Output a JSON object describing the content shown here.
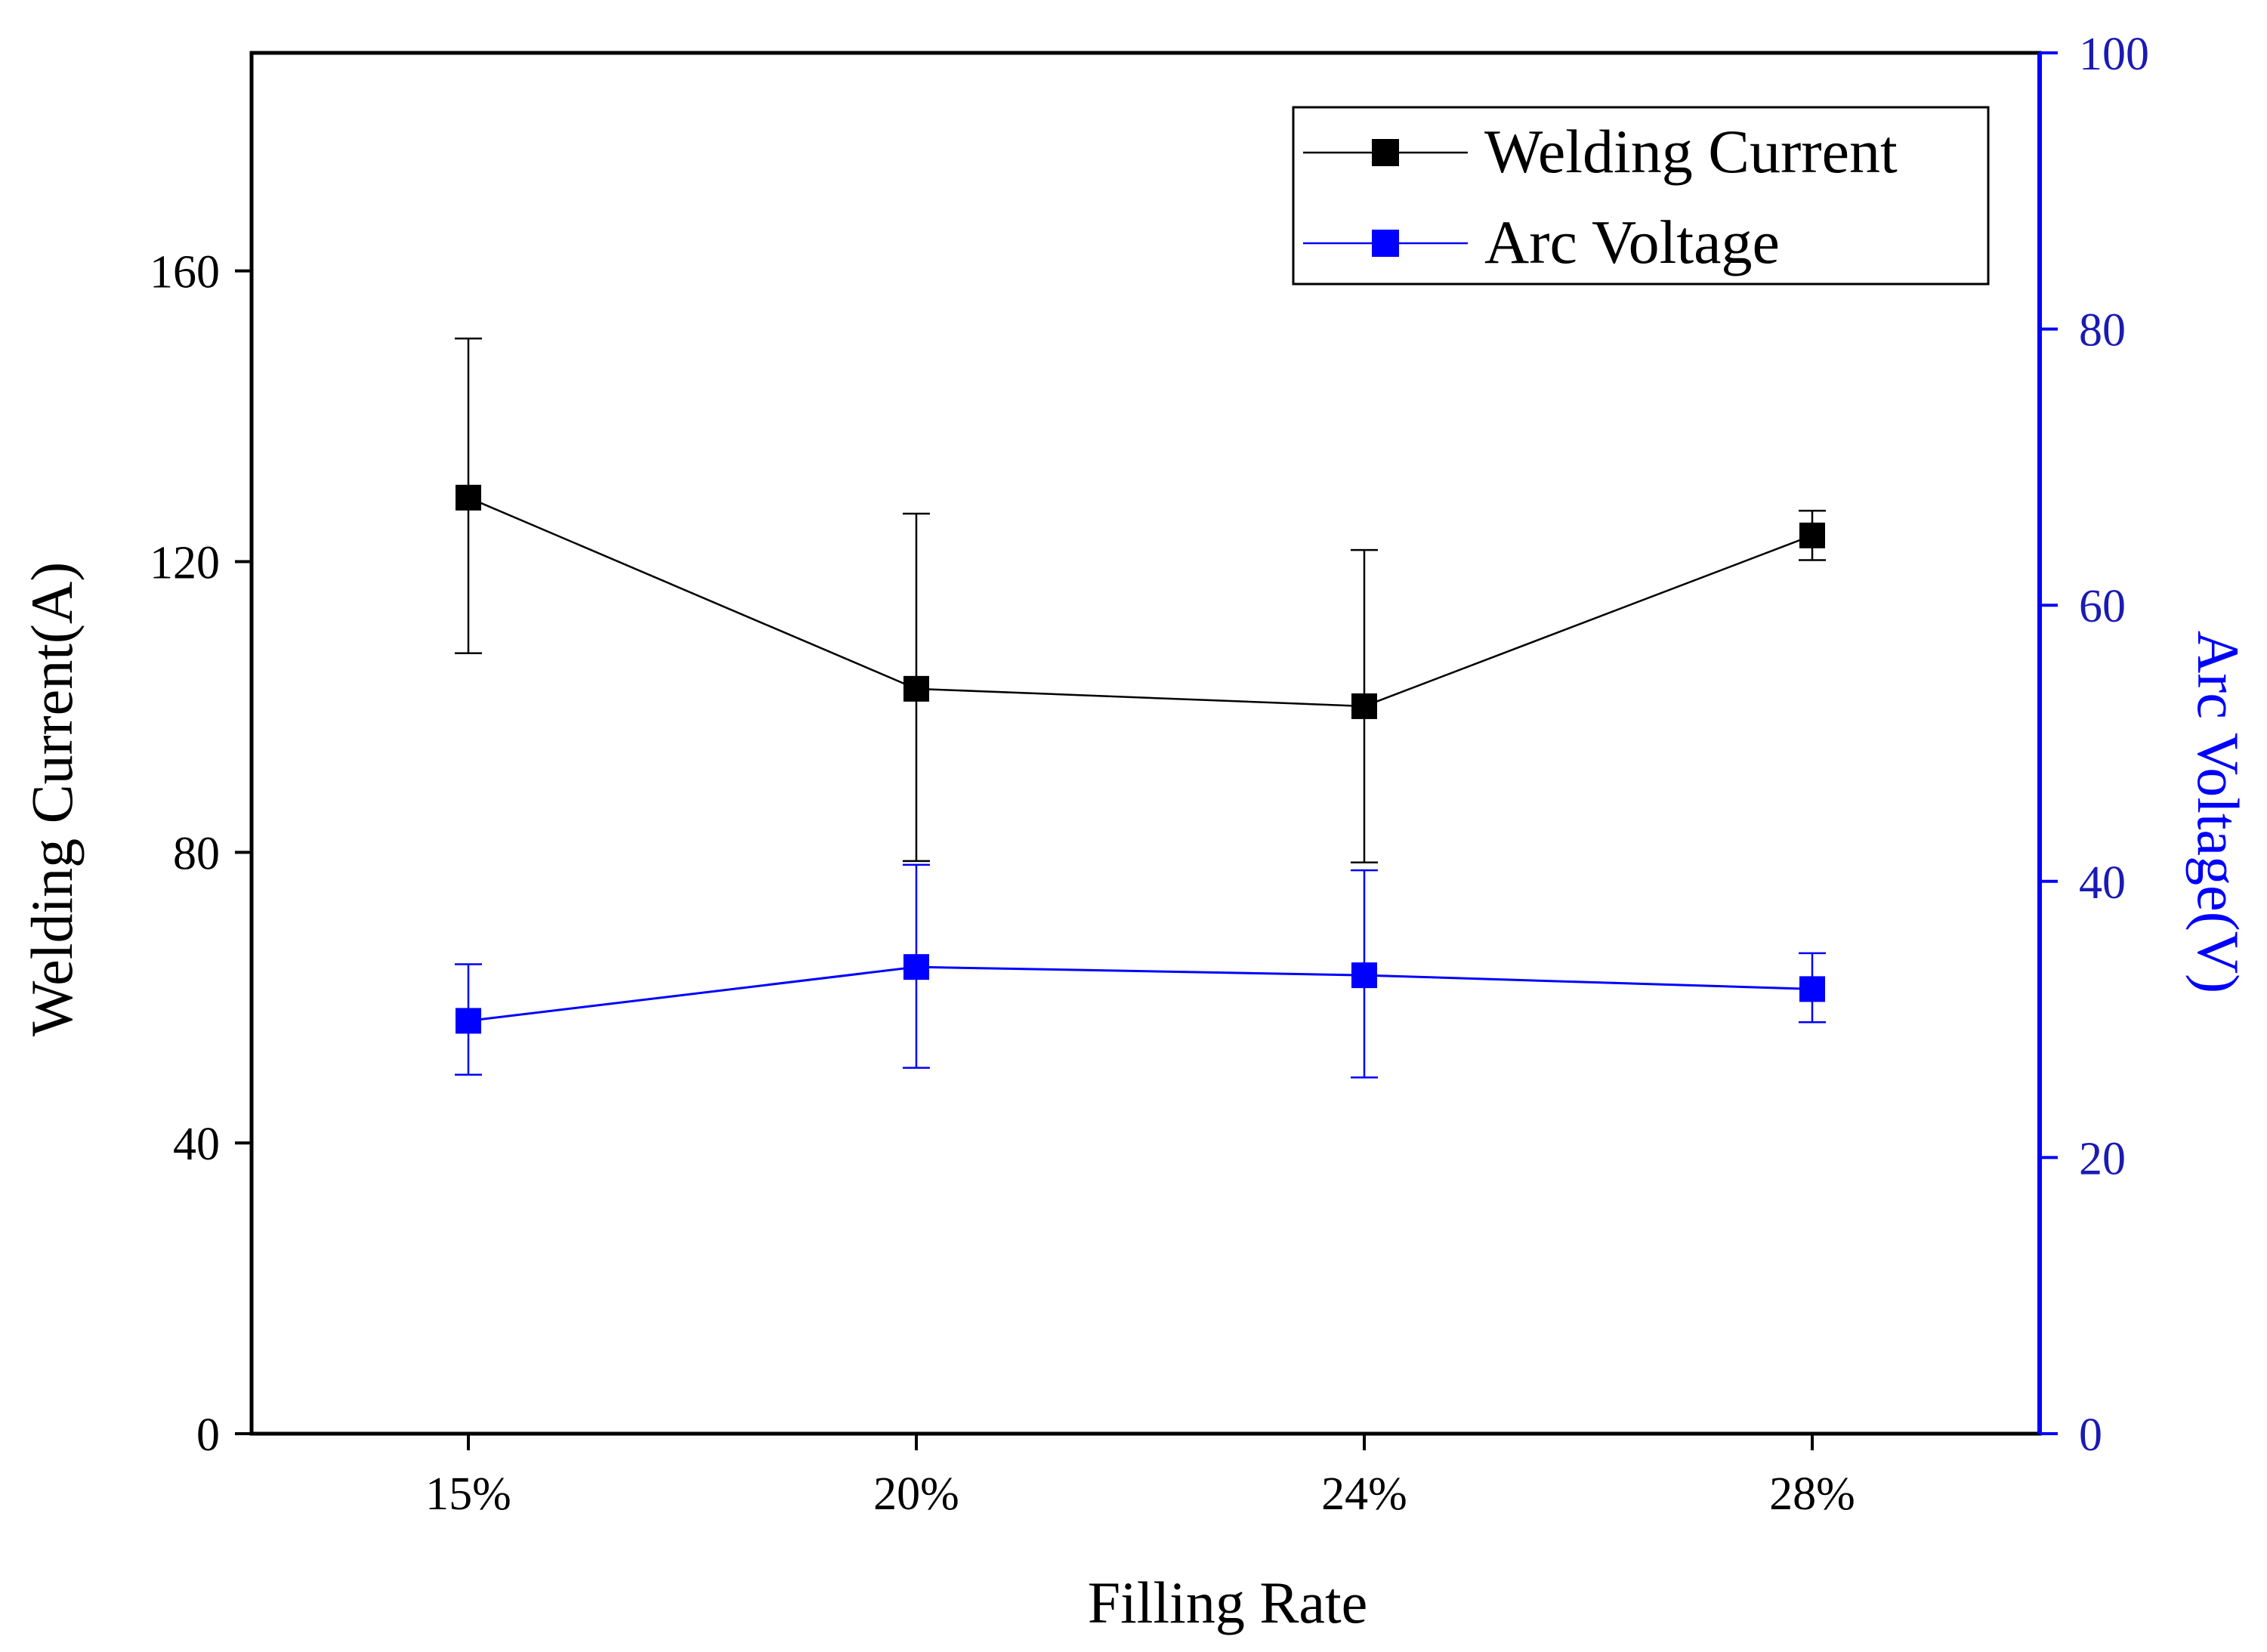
{
  "colors": {
    "current": "#000000",
    "voltage": "#0000ff",
    "right_axis": "#1a1ab4",
    "background": "#ffffff"
  },
  "chart_data": {
    "type": "line",
    "title": "",
    "xlabel": "Filling Rate",
    "categories": [
      "15%",
      "20%",
      "24%",
      "28%"
    ],
    "y_left": {
      "label": "Welding Current(A)",
      "ylim": [
        0,
        190
      ],
      "ticks": [
        0,
        40,
        80,
        120,
        160
      ],
      "tick_labels": [
        "0",
        "40",
        "80",
        "120",
        "160"
      ]
    },
    "y_right": {
      "label": "Arc Voltage(V)",
      "ylim": [
        0,
        100
      ],
      "ticks": [
        0,
        20,
        40,
        60,
        80,
        100
      ],
      "tick_labels": [
        "0",
        "20",
        "40",
        "60",
        "80",
        "100"
      ]
    },
    "grid": false,
    "legend_position": "top-right",
    "series": [
      {
        "name": "Welding Current",
        "axis": "left",
        "marker": "square",
        "values": [
          128.8,
          102.5,
          100.1,
          123.6
        ],
        "error_low": [
          107.4,
          78.8,
          78.6,
          120.2
        ],
        "error_high": [
          150.7,
          126.6,
          121.6,
          127.0
        ]
      },
      {
        "name": "Arc Voltage",
        "axis": "right",
        "marker": "square",
        "values": [
          29.9,
          33.8,
          33.2,
          32.2
        ],
        "error_low": [
          26.0,
          26.5,
          25.8,
          29.8
        ],
        "error_high": [
          34.0,
          41.2,
          40.8,
          34.8
        ]
      }
    ]
  }
}
